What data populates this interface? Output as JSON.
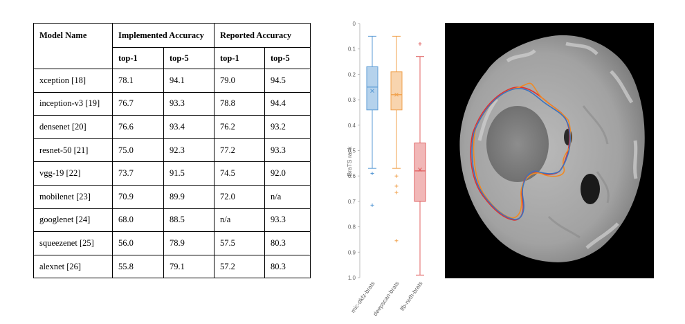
{
  "table": {
    "header": {
      "model_name": "Model Name",
      "implemented": "Implemented Accuracy",
      "reported": "Reported Accuracy",
      "top1": "top-1",
      "top5": "top-5"
    },
    "rows": [
      {
        "model": "xception [18]",
        "impl_top1": "78.1",
        "impl_top5": "94.1",
        "rep_top1": "79.0",
        "rep_top5": "94.5"
      },
      {
        "model": "inception-v3 [19]",
        "impl_top1": "76.7",
        "impl_top5": "93.3",
        "rep_top1": "78.8",
        "rep_top5": "94.4"
      },
      {
        "model": "densenet [20]",
        "impl_top1": "76.6",
        "impl_top5": "93.4",
        "rep_top1": "76.2",
        "rep_top5": "93.2"
      },
      {
        "model": "resnet-50 [21]",
        "impl_top1": "75.0",
        "impl_top5": "92.3",
        "rep_top1": "77.2",
        "rep_top5": "93.3"
      },
      {
        "model": "vgg-19 [22]",
        "impl_top1": "73.7",
        "impl_top5": "91.5",
        "rep_top1": "74.5",
        "rep_top5": "92.0"
      },
      {
        "model": "mobilenet [23]",
        "impl_top1": "70.9",
        "impl_top5": "89.9",
        "rep_top1": "72.0",
        "rep_top5": "n/a"
      },
      {
        "model": "googlenet [24]",
        "impl_top1": "68.0",
        "impl_top5": "88.5",
        "rep_top1": "n/a",
        "rep_top5": "93.3"
      },
      {
        "model": "squeezenet [25]",
        "impl_top1": "56.0",
        "impl_top5": "78.9",
        "rep_top1": "57.5",
        "rep_top5": "80.3"
      },
      {
        "model": "alexnet [26]",
        "impl_top1": "55.8",
        "impl_top5": "79.1",
        "rep_top1": "57.2",
        "rep_top5": "80.3"
      }
    ]
  },
  "chart_data": {
    "type": "box",
    "ylabel": "BraTS rank",
    "ylim": [
      0,
      1
    ],
    "y_inverted": true,
    "yticks": [
      "0",
      "0.1",
      "0.2",
      "0.3",
      "0.4",
      "0.5",
      "0.6",
      "0.7",
      "0.8",
      "0.9",
      "1.0"
    ],
    "categories": [
      "mic-dkfz-brats",
      "deepscan-brats",
      "lfb-rwth-brats"
    ],
    "colors": [
      "#5b9bd5",
      "#f0a04b",
      "#e06060"
    ],
    "boxes": [
      {
        "name": "mic-dkfz-brats",
        "whisker_low": 0.05,
        "q1": 0.17,
        "median": 0.25,
        "mean": 0.265,
        "q3": 0.34,
        "whisker_high": 0.57,
        "outliers": [
          0.59,
          0.715
        ]
      },
      {
        "name": "deepscan-brats",
        "whisker_low": 0.05,
        "q1": 0.19,
        "median": 0.28,
        "mean": 0.28,
        "q3": 0.34,
        "whisker_high": 0.57,
        "outliers": [
          0.6,
          0.64,
          0.665,
          0.855
        ]
      },
      {
        "name": "lfb-rwth-brats",
        "whisker_low": 0.13,
        "q1": 0.47,
        "median": 0.58,
        "mean": 0.575,
        "q3": 0.7,
        "whisker_high": 0.99,
        "outliers": [
          0.08
        ]
      }
    ]
  },
  "image": {
    "description_icon": "brain-mri-icon",
    "contour_colors": [
      "#e03030",
      "#f08a24",
      "#3a73c0"
    ]
  }
}
